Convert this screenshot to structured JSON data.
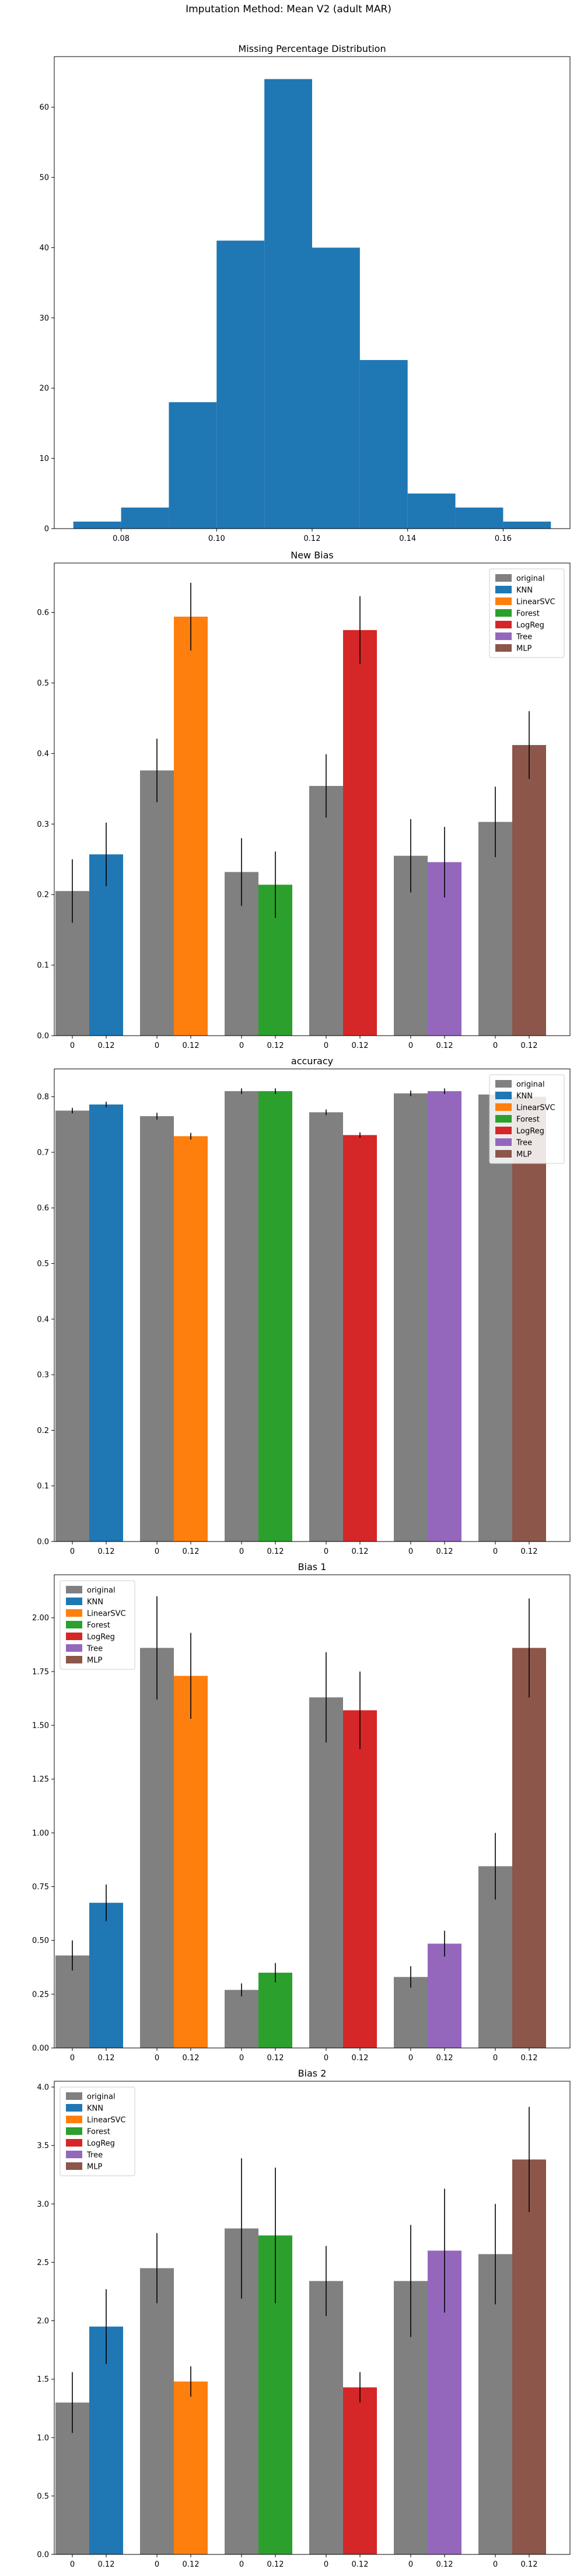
{
  "figure_title": "Imputation Method: Mean V2 (adult MAR)",
  "colors": {
    "original": "#808080",
    "KNN": "#1f77b4",
    "LinearSVC": "#ff7f0e",
    "Forest": "#2ca02c",
    "LogReg": "#d62728",
    "Tree": "#9467bd",
    "MLP": "#8c564b"
  },
  "chart_data": [
    {
      "type": "histogram",
      "title": "Missing Percentage Distribution",
      "bins": [
        {
          "x0": 0.07,
          "x1": 0.08,
          "count": 1
        },
        {
          "x0": 0.08,
          "x1": 0.09,
          "count": 3
        },
        {
          "x0": 0.09,
          "x1": 0.1,
          "count": 18
        },
        {
          "x0": 0.1,
          "x1": 0.11,
          "count": 41
        },
        {
          "x0": 0.11,
          "x1": 0.12,
          "count": 64
        },
        {
          "x0": 0.12,
          "x1": 0.13,
          "count": 40
        },
        {
          "x0": 0.13,
          "x1": 0.14,
          "count": 24
        },
        {
          "x0": 0.14,
          "x1": 0.15,
          "count": 5
        },
        {
          "x0": 0.15,
          "x1": 0.16,
          "count": 3
        },
        {
          "x0": 0.16,
          "x1": 0.17,
          "count": 1
        }
      ],
      "xlim": [
        0.066,
        0.174
      ],
      "ylim": [
        0,
        67.2
      ],
      "xticks": [
        0.08,
        0.1,
        0.12,
        0.14,
        0.16
      ],
      "xtick_labels": [
        "0.08",
        "0.10",
        "0.12",
        "0.14",
        "0.16"
      ],
      "yticks": [
        0,
        10,
        20,
        30,
        40,
        50,
        60
      ],
      "ytick_labels": [
        "0",
        "10",
        "20",
        "30",
        "40",
        "50",
        "60"
      ]
    },
    {
      "type": "bar",
      "title": "New Bias",
      "legend_position": "top-right",
      "ylim": [
        0,
        0.67
      ],
      "yticks": [
        0.0,
        0.1,
        0.2,
        0.3,
        0.4,
        0.5,
        0.6
      ],
      "ytick_labels": [
        "0.0",
        "0.1",
        "0.2",
        "0.3",
        "0.4",
        "0.5",
        "0.6"
      ],
      "groups": [
        {
          "model": "KNN",
          "original": 0.205,
          "original_err": 0.045,
          "imputed": 0.257,
          "imputed_err": 0.045
        },
        {
          "model": "LinearSVC",
          "original": 0.376,
          "original_err": 0.045,
          "imputed": 0.594,
          "imputed_err": 0.048
        },
        {
          "model": "Forest",
          "original": 0.232,
          "original_err": 0.048,
          "imputed": 0.214,
          "imputed_err": 0.047
        },
        {
          "model": "LogReg",
          "original": 0.354,
          "original_err": 0.045,
          "imputed": 0.575,
          "imputed_err": 0.048
        },
        {
          "model": "Tree",
          "original": 0.255,
          "original_err": 0.052,
          "imputed": 0.246,
          "imputed_err": 0.05
        },
        {
          "model": "MLP",
          "original": 0.303,
          "original_err": 0.05,
          "imputed": 0.412,
          "imputed_err": 0.048
        }
      ]
    },
    {
      "type": "bar",
      "title": "accuracy",
      "legend_position": "top-right",
      "ylim": [
        0,
        0.85
      ],
      "yticks": [
        0.0,
        0.1,
        0.2,
        0.3,
        0.4,
        0.5,
        0.6,
        0.7,
        0.8
      ],
      "ytick_labels": [
        "0.0",
        "0.1",
        "0.2",
        "0.3",
        "0.4",
        "0.5",
        "0.6",
        "0.7",
        "0.8"
      ],
      "groups": [
        {
          "model": "KNN",
          "original": 0.775,
          "original_err": 0.005,
          "imputed": 0.786,
          "imputed_err": 0.005
        },
        {
          "model": "LinearSVC",
          "original": 0.765,
          "original_err": 0.006,
          "imputed": 0.729,
          "imputed_err": 0.006
        },
        {
          "model": "Forest",
          "original": 0.81,
          "original_err": 0.005,
          "imputed": 0.81,
          "imputed_err": 0.005
        },
        {
          "model": "LogReg",
          "original": 0.772,
          "original_err": 0.005,
          "imputed": 0.731,
          "imputed_err": 0.005
        },
        {
          "model": "Tree",
          "original": 0.806,
          "original_err": 0.005,
          "imputed": 0.81,
          "imputed_err": 0.005
        },
        {
          "model": "MLP",
          "original": 0.804,
          "original_err": 0.005,
          "imputed": 0.8,
          "imputed_err": 0.005
        }
      ]
    },
    {
      "type": "bar",
      "title": "Bias 1",
      "legend_position": "top-left",
      "ylim": [
        0,
        2.2
      ],
      "yticks": [
        0.0,
        0.25,
        0.5,
        0.75,
        1.0,
        1.25,
        1.5,
        1.75,
        2.0
      ],
      "ytick_labels": [
        "0.00",
        "0.25",
        "0.50",
        "0.75",
        "1.00",
        "1.25",
        "1.50",
        "1.75",
        "2.00"
      ],
      "groups": [
        {
          "model": "KNN",
          "original": 0.43,
          "original_err": 0.07,
          "imputed": 0.675,
          "imputed_err": 0.085
        },
        {
          "model": "LinearSVC",
          "original": 1.86,
          "original_err": 0.24,
          "imputed": 1.73,
          "imputed_err": 0.2
        },
        {
          "model": "Forest",
          "original": 0.27,
          "original_err": 0.03,
          "imputed": 0.35,
          "imputed_err": 0.045
        },
        {
          "model": "LogReg",
          "original": 1.63,
          "original_err": 0.21,
          "imputed": 1.57,
          "imputed_err": 0.18
        },
        {
          "model": "Tree",
          "original": 0.33,
          "original_err": 0.05,
          "imputed": 0.485,
          "imputed_err": 0.06
        },
        {
          "model": "MLP",
          "original": 0.845,
          "original_err": 0.155,
          "imputed": 1.86,
          "imputed_err": 0.23
        }
      ]
    },
    {
      "type": "bar",
      "title": "Bias 2",
      "legend_position": "top-left",
      "ylim": [
        0,
        4.05
      ],
      "yticks": [
        0.0,
        0.5,
        1.0,
        1.5,
        2.0,
        2.5,
        3.0,
        3.5,
        4.0
      ],
      "ytick_labels": [
        "0.0",
        "0.5",
        "1.0",
        "1.5",
        "2.0",
        "2.5",
        "3.0",
        "3.5",
        "4.0"
      ],
      "groups": [
        {
          "model": "KNN",
          "original": 1.3,
          "original_err": 0.26,
          "imputed": 1.95,
          "imputed_err": 0.32
        },
        {
          "model": "LinearSVC",
          "original": 2.45,
          "original_err": 0.3,
          "imputed": 1.48,
          "imputed_err": 0.13
        },
        {
          "model": "Forest",
          "original": 2.79,
          "original_err": 0.6,
          "imputed": 2.73,
          "imputed_err": 0.58
        },
        {
          "model": "LogReg",
          "original": 2.34,
          "original_err": 0.3,
          "imputed": 1.43,
          "imputed_err": 0.13
        },
        {
          "model": "Tree",
          "original": 2.34,
          "original_err": 0.48,
          "imputed": 2.6,
          "imputed_err": 0.53
        },
        {
          "model": "MLP",
          "original": 2.57,
          "original_err": 0.43,
          "imputed": 3.38,
          "imputed_err": 0.45
        }
      ]
    }
  ],
  "bar_xtick_labels": [
    "0",
    "0.12"
  ],
  "legend_entries": [
    "original",
    "KNN",
    "LinearSVC",
    "Forest",
    "LogReg",
    "Tree",
    "MLP"
  ]
}
